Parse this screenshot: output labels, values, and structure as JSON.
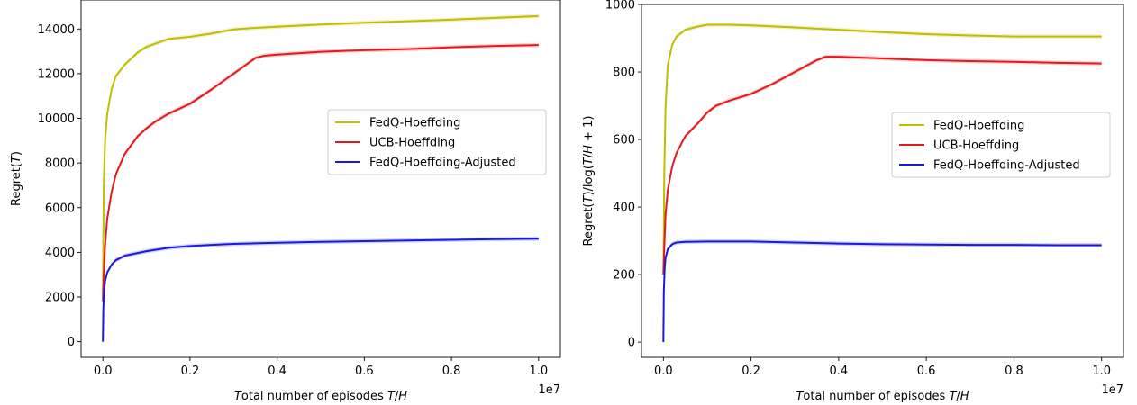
{
  "chart_data": [
    {
      "type": "line",
      "xlabel": "Total number of episodes T/H",
      "ylabel": "Regret(T)",
      "x_offset_label": "1e7",
      "xlim": [
        -0.05,
        1.05
      ],
      "ylim": [
        -700,
        15300
      ],
      "xticks": [
        0.0,
        0.2,
        0.4,
        0.6,
        0.8,
        1.0
      ],
      "xtick_labels": [
        "0.0",
        "0.2",
        "0.4",
        "0.6",
        "0.8",
        "1.0"
      ],
      "yticks": [
        0,
        2000,
        4000,
        6000,
        8000,
        10000,
        12000,
        14000
      ],
      "ytick_labels": [
        "0",
        "2000",
        "4000",
        "6000",
        "8000",
        "10000",
        "12000",
        "14000"
      ],
      "grid": false,
      "legend": "center-right",
      "series": [
        {
          "name": "FedQ-Hoeffding",
          "color": "#bfbf00",
          "x": [
            0,
            0.002,
            0.005,
            0.01,
            0.02,
            0.03,
            0.05,
            0.08,
            0.1,
            0.15,
            0.2,
            0.25,
            0.3,
            0.35,
            0.4,
            0.5,
            0.6,
            0.7,
            0.8,
            0.9,
            1.0
          ],
          "y": [
            2000,
            7000,
            9000,
            10200,
            11300,
            11900,
            12400,
            12950,
            13200,
            13550,
            13650,
            13800,
            13980,
            14050,
            14100,
            14200,
            14280,
            14350,
            14420,
            14500,
            14580
          ]
        },
        {
          "name": "UCB-Hoeffding",
          "color": "#e31a1c",
          "x": [
            0,
            0.002,
            0.005,
            0.01,
            0.02,
            0.03,
            0.05,
            0.08,
            0.1,
            0.12,
            0.15,
            0.2,
            0.25,
            0.3,
            0.35,
            0.37,
            0.4,
            0.5,
            0.6,
            0.7,
            0.8,
            0.9,
            1.0
          ],
          "y": [
            1800,
            3000,
            4300,
            5500,
            6700,
            7500,
            8400,
            9200,
            9550,
            9850,
            10200,
            10650,
            11300,
            12000,
            12700,
            12800,
            12850,
            12980,
            13050,
            13100,
            13180,
            13240,
            13280
          ]
        },
        {
          "name": "FedQ-Hoeffding-Adjusted",
          "color": "#1a1adb",
          "x": [
            0,
            0.001,
            0.003,
            0.005,
            0.01,
            0.02,
            0.03,
            0.05,
            0.1,
            0.15,
            0.2,
            0.3,
            0.4,
            0.5,
            0.6,
            0.7,
            0.8,
            0.9,
            1.0
          ],
          "y": [
            0,
            1500,
            2300,
            2700,
            3100,
            3450,
            3650,
            3850,
            4050,
            4200,
            4280,
            4380,
            4430,
            4470,
            4500,
            4530,
            4560,
            4590,
            4610
          ]
        }
      ]
    },
    {
      "type": "line",
      "xlabel": "Total number of episodes T/H",
      "ylabel": "Regret(T)/log(T/H + 1)",
      "x_offset_label": "1e7",
      "xlim": [
        -0.05,
        1.05
      ],
      "ylim": [
        -45,
        1000
      ],
      "xticks": [
        0.0,
        0.2,
        0.4,
        0.6,
        0.8,
        1.0
      ],
      "xtick_labels": [
        "0.0",
        "0.2",
        "0.4",
        "0.6",
        "0.8",
        "1.0"
      ],
      "yticks": [
        0,
        200,
        400,
        600,
        800,
        1000
      ],
      "ytick_labels": [
        "0",
        "200",
        "400",
        "600",
        "800",
        "1000"
      ],
      "grid": false,
      "legend": "center-right",
      "series": [
        {
          "name": "FedQ-Hoeffding",
          "color": "#bfbf00",
          "x": [
            0,
            0.002,
            0.005,
            0.01,
            0.02,
            0.03,
            0.05,
            0.08,
            0.1,
            0.15,
            0.2,
            0.25,
            0.3,
            0.4,
            0.5,
            0.6,
            0.7,
            0.8,
            0.9,
            1.0
          ],
          "y": [
            200,
            500,
            700,
            820,
            880,
            905,
            925,
            935,
            940,
            940,
            938,
            935,
            932,
            925,
            918,
            912,
            908,
            905,
            905,
            905
          ]
        },
        {
          "name": "UCB-Hoeffding",
          "color": "#e31a1c",
          "x": [
            0,
            0.002,
            0.005,
            0.01,
            0.02,
            0.03,
            0.05,
            0.08,
            0.1,
            0.12,
            0.15,
            0.2,
            0.25,
            0.3,
            0.35,
            0.37,
            0.4,
            0.5,
            0.6,
            0.7,
            0.8,
            0.9,
            1.0
          ],
          "y": [
            200,
            280,
            380,
            450,
            520,
            560,
            610,
            650,
            680,
            700,
            715,
            735,
            765,
            800,
            835,
            845,
            845,
            840,
            835,
            832,
            830,
            827,
            825
          ]
        },
        {
          "name": "FedQ-Hoeffding-Adjusted",
          "color": "#1a1adb",
          "x": [
            0,
            0.001,
            0.003,
            0.005,
            0.01,
            0.02,
            0.03,
            0.05,
            0.1,
            0.2,
            0.3,
            0.4,
            0.5,
            0.6,
            0.7,
            0.8,
            0.9,
            1.0
          ],
          "y": [
            0,
            150,
            220,
            250,
            275,
            290,
            295,
            297,
            298,
            298,
            295,
            292,
            290,
            289,
            288,
            288,
            287,
            287
          ]
        }
      ]
    }
  ]
}
